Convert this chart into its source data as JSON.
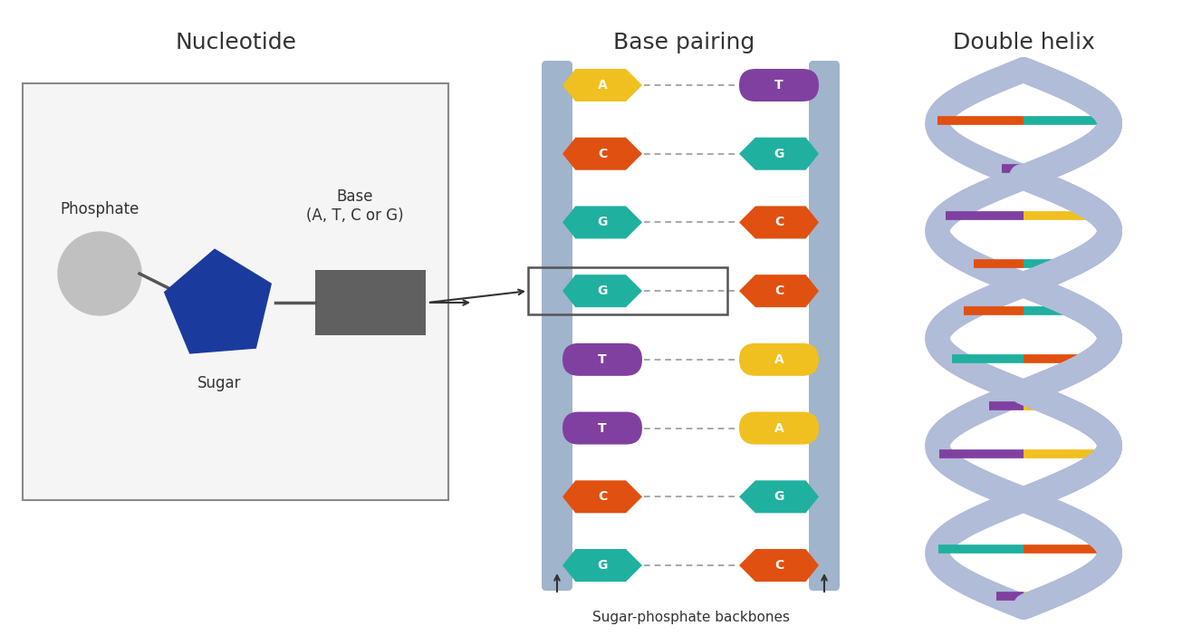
{
  "title_nucleotide": "Nucleotide",
  "title_base_pairing": "Base pairing",
  "title_double_helix": "Double helix",
  "bg_color": "#ffffff",
  "text_color": "#333333",
  "phosphate_color": "#c0c0c0",
  "sugar_color": "#1a3a9e",
  "backbone_color": "#a8b8d0",
  "base_pairs": [
    {
      "left": "A",
      "right": "T",
      "left_color": "#f0c020",
      "right_color": "#8040a0",
      "left_shape": "arrow_right",
      "right_shape": "blob_left"
    },
    {
      "left": "C",
      "right": "G",
      "left_color": "#e05010",
      "right_color": "#20b0a0",
      "left_shape": "arrow_right",
      "right_shape": "arrow_left"
    },
    {
      "left": "G",
      "right": "C",
      "left_color": "#20b0a0",
      "right_color": "#e05010",
      "left_shape": "arrow_right",
      "right_shape": "arrow_left"
    },
    {
      "left": "G",
      "right": "C",
      "left_color": "#20b0a0",
      "right_color": "#e05010",
      "left_shape": "arrow_right",
      "right_shape": "arrow_left",
      "highlighted": true
    },
    {
      "left": "T",
      "right": "A",
      "left_color": "#8040a0",
      "right_color": "#f0c020",
      "left_shape": "blob_right",
      "right_shape": "blob_left"
    },
    {
      "left": "T",
      "right": "A",
      "left_color": "#8040a0",
      "right_color": "#f0c020",
      "left_shape": "blob_right",
      "right_shape": "blob_left"
    },
    {
      "left": "C",
      "right": "G",
      "left_color": "#e05010",
      "right_color": "#20b0a0",
      "left_shape": "arrow_right",
      "right_shape": "arrow_left"
    },
    {
      "left": "G",
      "right": "C",
      "left_color": "#20b0a0",
      "right_color": "#e05010",
      "left_shape": "arrow_right",
      "right_shape": "arrow_left"
    }
  ],
  "rung_colors_left": [
    "#f0c020",
    "#e05010",
    "#e05010",
    "#8040a0",
    "#8040a0",
    "#e05010",
    "#20b0a0",
    "#e05010",
    "#8040a0",
    "#f0c020",
    "#20b0a0",
    "#e05010"
  ],
  "rung_colors_right": [
    "#8040a0",
    "#20b0a0",
    "#20b0a0",
    "#f0c020",
    "#f0c020",
    "#20b0a0",
    "#e05010",
    "#20b0a0",
    "#f0c020",
    "#8040a0",
    "#e05010",
    "#20b0a0"
  ],
  "sugar_phosphate_label": "Sugar-phosphate backbones",
  "phosphate_label": "Phosphate",
  "sugar_label": "Sugar",
  "base_label": "Base\n(A, T, C or G)"
}
